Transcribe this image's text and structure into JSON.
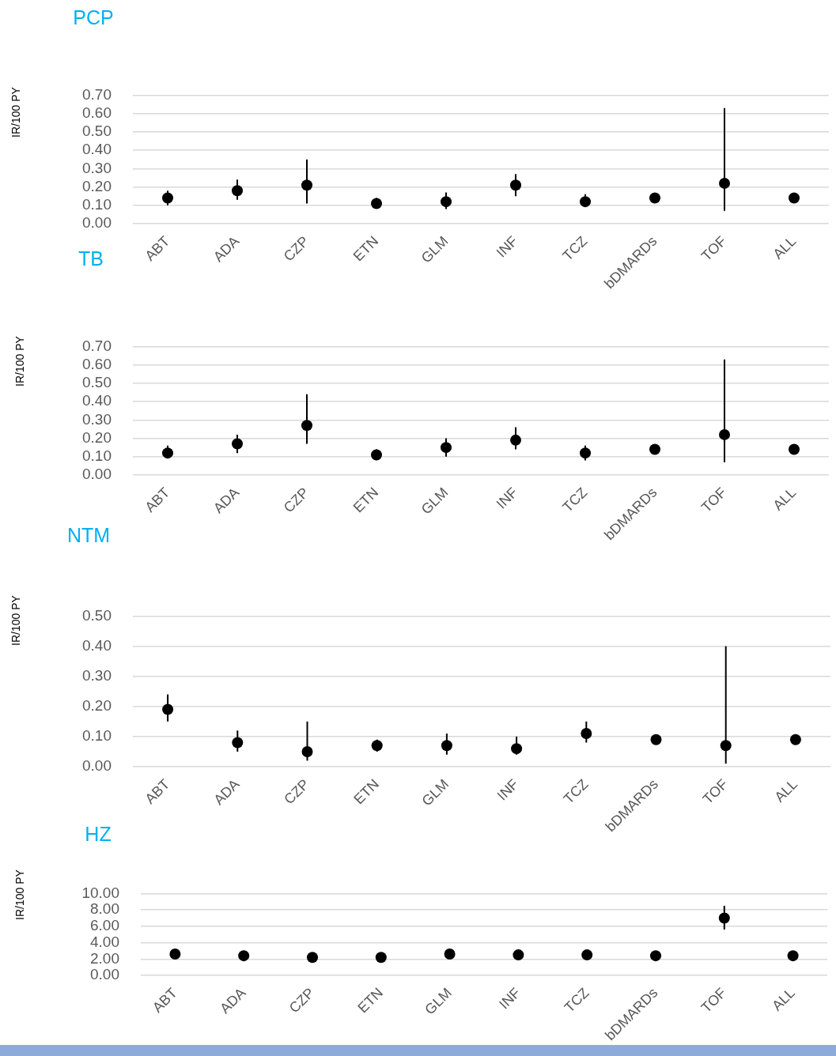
{
  "chart_data": [
    {
      "type": "scatter",
      "title": "PCP",
      "ylabel": "IR/100 PY",
      "categories": [
        "ABT",
        "ADA",
        "CZP",
        "ETN",
        "GLM",
        "INF",
        "TCZ",
        "bDMARDs",
        "TOF",
        "ALL"
      ],
      "values": [
        0.14,
        0.18,
        0.21,
        0.11,
        0.12,
        0.21,
        0.12,
        0.14,
        0.22,
        0.14
      ],
      "errors": [
        [
          0.1,
          0.18
        ],
        [
          0.13,
          0.24
        ],
        [
          0.11,
          0.35
        ],
        [
          0.11,
          0.14
        ],
        [
          0.08,
          0.17
        ],
        [
          0.15,
          0.27
        ],
        [
          0.09,
          0.16
        ],
        null,
        [
          0.07,
          0.63
        ],
        null
      ],
      "color": "#000000",
      "ylim": [
        0,
        0.7
      ],
      "yticks": [
        {
          "value": 0,
          "label": "0.00"
        },
        {
          "value": 0.1,
          "label": "0.10"
        },
        {
          "value": 0.2,
          "label": "0.20"
        },
        {
          "value": 0.3,
          "label": "0.30"
        },
        {
          "value": 0.4,
          "label": "0.40"
        },
        {
          "value": 0.5,
          "label": "0.50"
        },
        {
          "value": 0.6,
          "label": "0.60"
        },
        {
          "value": 0.7,
          "label": "0.70"
        }
      ],
      "grid": "y",
      "marker": "circle"
    },
    {
      "type": "scatter",
      "title": "TB",
      "ylabel": "IR/100 PY",
      "categories": [
        "ABT",
        "ADA",
        "CZP",
        "ETN",
        "GLM",
        "INF",
        "TCZ",
        "bDMARDs",
        "TOF",
        "ALL"
      ],
      "values": [
        0.12,
        0.17,
        0.27,
        0.11,
        0.15,
        0.19,
        0.12,
        0.14,
        0.22,
        0.14
      ],
      "errors": [
        [
          0.09,
          0.16
        ],
        [
          0.12,
          0.22
        ],
        [
          0.17,
          0.44
        ],
        [
          0.11,
          0.14
        ],
        [
          0.1,
          0.2
        ],
        [
          0.14,
          0.26
        ],
        [
          0.08,
          0.16
        ],
        null,
        [
          0.07,
          0.63
        ],
        null
      ],
      "color": "#000000",
      "ylim": [
        0,
        0.7
      ],
      "yticks": [
        {
          "value": 0,
          "label": "0.00"
        },
        {
          "value": 0.1,
          "label": "0.10"
        },
        {
          "value": 0.2,
          "label": "0.20"
        },
        {
          "value": 0.3,
          "label": "0.30"
        },
        {
          "value": 0.4,
          "label": "0.40"
        },
        {
          "value": 0.5,
          "label": "0.50"
        },
        {
          "value": 0.6,
          "label": "0.60"
        },
        {
          "value": 0.7,
          "label": "0.70"
        }
      ],
      "grid": "y",
      "marker": "circle"
    },
    {
      "type": "scatter",
      "title": "NTM",
      "ylabel": "IR/100 PY",
      "categories": [
        "ABT",
        "ADA",
        "CZP",
        "ETN",
        "GLM",
        "INF",
        "TCZ",
        "bDMARDs",
        "TOF",
        "ALL"
      ],
      "values": [
        0.19,
        0.08,
        0.05,
        0.07,
        0.07,
        0.06,
        0.11,
        0.09,
        0.07,
        0.09
      ],
      "errors": [
        [
          0.15,
          0.24
        ],
        [
          0.05,
          0.12
        ],
        [
          0.02,
          0.15
        ],
        [
          0.05,
          0.09
        ],
        [
          0.04,
          0.11
        ],
        [
          0.04,
          0.1
        ],
        [
          0.08,
          0.15
        ],
        null,
        [
          0.01,
          0.4
        ],
        null
      ],
      "color": "#000000",
      "ylim": [
        0,
        0.5
      ],
      "yticks": [
        {
          "value": 0,
          "label": "0.00"
        },
        {
          "value": 0.1,
          "label": "0.10"
        },
        {
          "value": 0.2,
          "label": "0.20"
        },
        {
          "value": 0.3,
          "label": "0.30"
        },
        {
          "value": 0.4,
          "label": "0.40"
        },
        {
          "value": 0.5,
          "label": "0.50"
        }
      ],
      "grid": "y",
      "marker": "circle"
    },
    {
      "type": "scatter",
      "title": "HZ",
      "ylabel": "IR/100 PY",
      "categories": [
        "ABT",
        "ADA",
        "CZP",
        "ETN",
        "GLM",
        "INF",
        "TCZ",
        "bDMARDs",
        "TOF",
        "ALL"
      ],
      "values": [
        2.6,
        2.4,
        2.2,
        2.2,
        2.6,
        2.5,
        2.5,
        2.4,
        7.0,
        2.4
      ],
      "errors": [
        null,
        null,
        null,
        null,
        null,
        null,
        null,
        null,
        [
          5.6,
          8.5
        ],
        null
      ],
      "color": "#000000",
      "ylim": [
        0,
        10
      ],
      "yticks": [
        {
          "value": 0,
          "label": "0.00"
        },
        {
          "value": 2,
          "label": "2.00"
        },
        {
          "value": 4,
          "label": "4.00"
        },
        {
          "value": 6,
          "label": "6.00"
        },
        {
          "value": 8,
          "label": "8.00"
        },
        {
          "value": 10,
          "label": "10.00"
        }
      ],
      "grid": "y",
      "marker": "circle"
    }
  ]
}
